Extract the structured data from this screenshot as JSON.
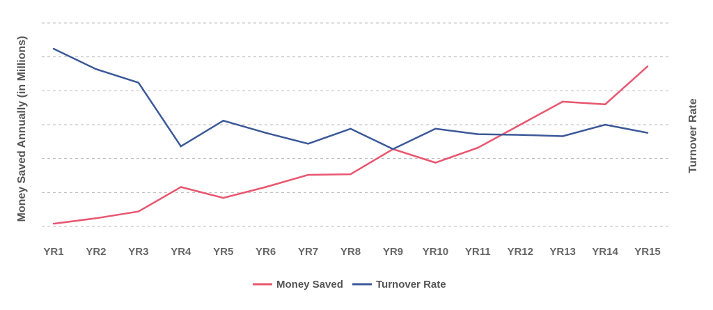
{
  "chart_data": {
    "type": "line",
    "title": "",
    "categories": [
      "YR1",
      "YR2",
      "YR3",
      "YR4",
      "YR5",
      "YR6",
      "YR7",
      "YR8",
      "YR9",
      "YR10",
      "YR11",
      "YR12",
      "YR13",
      "YR14",
      "YR15"
    ],
    "ylabel_left": "Money Saved Annually (in Millions)",
    "ylabel_right": "Turnover Rate",
    "xlabel": "",
    "y_tick_labels_visible": false,
    "grid": true,
    "grid_style": "dashed",
    "legend_position": "bottom-center",
    "series": [
      {
        "name": "Money Saved",
        "color": "#e8566f",
        "axis": "left",
        "values": [
          0.2,
          0.6,
          1.1,
          2.9,
          2.1,
          2.9,
          3.8,
          3.85,
          5.7,
          4.7,
          5.8,
          7.5,
          9.2,
          9.0,
          11.8
        ]
      },
      {
        "name": "Turnover Rate",
        "color": "#3b5998",
        "axis": "right",
        "values": [
          13.1,
          11.6,
          10.6,
          5.9,
          7.8,
          6.9,
          6.1,
          7.2,
          5.7,
          7.2,
          6.8,
          6.75,
          6.65,
          7.5,
          6.9
        ]
      }
    ],
    "ylim": [
      0,
      15
    ]
  }
}
